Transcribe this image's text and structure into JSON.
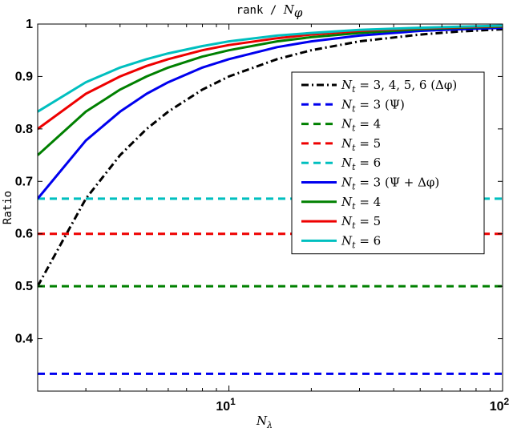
{
  "chart_data": {
    "type": "line",
    "title": "rank / N_φ",
    "title_parts": {
      "mono": "rank",
      "sep": "/",
      "sym": "N",
      "sub": "φ"
    },
    "xlabel": {
      "sym": "N",
      "sub": "λ"
    },
    "ylabel": "Ratio",
    "xscale": "log",
    "xlim": [
      2,
      100
    ],
    "ylim": [
      0.3,
      1.0
    ],
    "yticks": [
      0.4,
      0.5,
      0.6,
      0.7,
      0.8,
      0.9,
      1.0
    ],
    "ytick_labels": [
      "0.4",
      "0.5",
      "0.6",
      "0.7",
      "0.8",
      "0.9",
      "1"
    ],
    "xticks": [
      10,
      100
    ],
    "xtick_labels": [
      {
        "base": "10",
        "exp": "1"
      },
      {
        "base": "10",
        "exp": "2"
      }
    ],
    "grid": false,
    "legend_position": "right",
    "legend_entries": [
      {
        "text": "N_t = 3,4,5,6 (Δφ)",
        "sub": "t",
        "rest": " = 3, 4, 5, 6  (Δφ)"
      },
      {
        "text": "N_t = 3 (Ψ)",
        "sub": "t",
        "rest": " = 3  (Ψ)"
      },
      {
        "text": "N_t = 4",
        "sub": "t",
        "rest": " = 4"
      },
      {
        "text": "N_t = 5",
        "sub": "t",
        "rest": " = 5"
      },
      {
        "text": "N_t = 6",
        "sub": "t",
        "rest": " = 6"
      },
      {
        "text": "N_t = 3 (Ψ + Δφ)",
        "sub": "t",
        "rest": " = 3  (Ψ + Δφ)"
      },
      {
        "text": "N_t = 4",
        "sub": "t",
        "rest": " = 4"
      },
      {
        "text": "N_t = 5",
        "sub": "t",
        "rest": " = 5"
      },
      {
        "text": "N_t = 6",
        "sub": "t",
        "rest": " = 6"
      }
    ],
    "series": [
      {
        "color": "#000000",
        "style": "dashdot",
        "x": [
          2,
          3,
          4,
          5,
          6,
          8,
          10,
          15,
          20,
          30,
          50,
          70,
          100
        ],
        "y": [
          0.5,
          0.667,
          0.75,
          0.8,
          0.833,
          0.875,
          0.9,
          0.933,
          0.95,
          0.967,
          0.98,
          0.986,
          0.99
        ]
      },
      {
        "color": "#0000ee",
        "style": "dashed",
        "x": [
          2,
          100
        ],
        "y": [
          0.333,
          0.333
        ]
      },
      {
        "color": "#008000",
        "style": "dashed",
        "x": [
          2,
          100
        ],
        "y": [
          0.5,
          0.5
        ]
      },
      {
        "color": "#ee0000",
        "style": "dashed",
        "x": [
          2,
          100
        ],
        "y": [
          0.6,
          0.6
        ]
      },
      {
        "color": "#00bfbf",
        "style": "dashed",
        "x": [
          2,
          100
        ],
        "y": [
          0.667,
          0.667
        ]
      },
      {
        "color": "#0000ee",
        "style": "solid",
        "x": [
          2,
          3,
          4,
          5,
          6,
          8,
          10,
          15,
          20,
          30,
          50,
          70,
          100
        ],
        "y": [
          0.667,
          0.778,
          0.833,
          0.867,
          0.889,
          0.917,
          0.933,
          0.956,
          0.967,
          0.978,
          0.987,
          0.99,
          0.993
        ]
      },
      {
        "color": "#008000",
        "style": "solid",
        "x": [
          2,
          3,
          4,
          5,
          6,
          8,
          10,
          15,
          20,
          30,
          50,
          70,
          100
        ],
        "y": [
          0.75,
          0.833,
          0.875,
          0.9,
          0.917,
          0.938,
          0.95,
          0.967,
          0.975,
          0.983,
          0.99,
          0.993,
          0.995
        ]
      },
      {
        "color": "#ee0000",
        "style": "solid",
        "x": [
          2,
          3,
          4,
          5,
          6,
          8,
          10,
          15,
          20,
          30,
          50,
          70,
          100
        ],
        "y": [
          0.8,
          0.867,
          0.9,
          0.92,
          0.933,
          0.95,
          0.96,
          0.973,
          0.98,
          0.987,
          0.992,
          0.994,
          0.996
        ]
      },
      {
        "color": "#00bfbf",
        "style": "solid",
        "x": [
          2,
          3,
          4,
          5,
          6,
          8,
          10,
          15,
          20,
          30,
          50,
          70,
          100
        ],
        "y": [
          0.833,
          0.889,
          0.917,
          0.933,
          0.944,
          0.958,
          0.967,
          0.978,
          0.983,
          0.989,
          0.993,
          0.995,
          0.997
        ]
      }
    ]
  }
}
